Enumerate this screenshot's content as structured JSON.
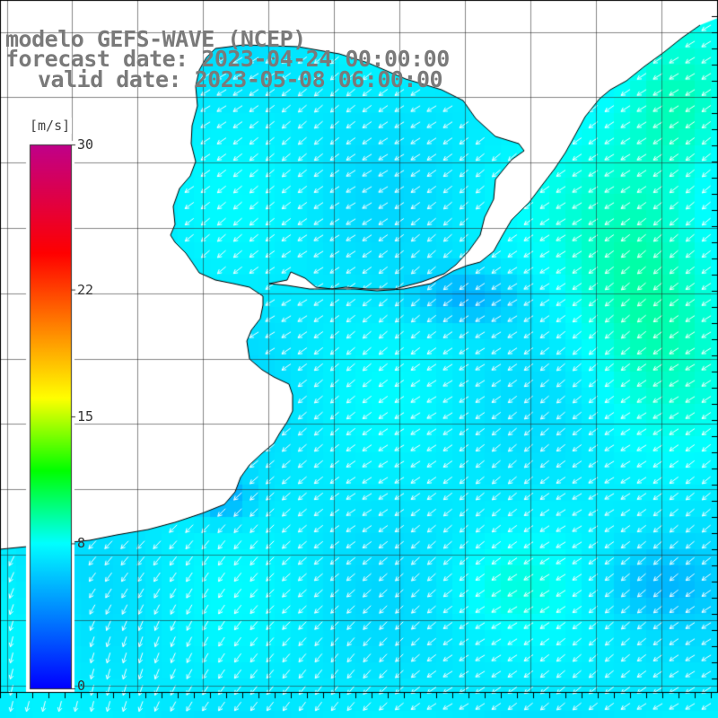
{
  "title": {
    "model": "modelo GEFS-WAVE (NCEP)",
    "forecast": "forecast date: 2023-04-24 00:00:00",
    "valid": "valid date: 2023-05-08 06:00:00"
  },
  "colorbar": {
    "unit": "[m/s]",
    "min": 0,
    "max": 30,
    "ticks": [
      {
        "label": "30",
        "value": 30
      },
      {
        "label": "22",
        "value": 22
      },
      {
        "label": "15",
        "value": 15
      },
      {
        "label": "8",
        "value": 8
      },
      {
        "label": "0",
        "value": 0
      }
    ],
    "colors": [
      "#0000ff",
      "#0080ff",
      "#00ffff",
      "#00ff00",
      "#ffff00",
      "#ff8000",
      "#ff0000",
      "#c0008a"
    ]
  },
  "map": {
    "variable": "wind speed and direction",
    "land_color": "#ffffff",
    "coast_color": "#000000",
    "grid_color": "#000000",
    "wind_arrow_color": "#ffffff",
    "dominant_wind_direction": "toward southwest",
    "dominant_speed_ms": 7.5
  }
}
